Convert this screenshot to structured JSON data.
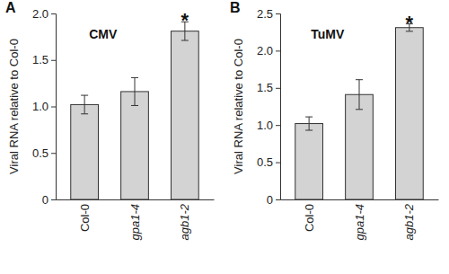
{
  "chart_data": [
    {
      "type": "bar",
      "panel_label": "A",
      "title": "CMV",
      "y_label": "Viral RNA relative to Col-0",
      "categories": [
        "Col-0",
        "gpa1-4",
        "agb1-2"
      ],
      "values": [
        1.02,
        1.16,
        1.81
      ],
      "errors": [
        0.1,
        0.15,
        0.1
      ],
      "color": "#d3d3d3",
      "ylim": [
        0,
        2
      ],
      "yticks": [
        0,
        0.5,
        {
          "value": 1,
          "label": "1.0"
        },
        1.5,
        {
          "value": 2,
          "label": "2.0"
        }
      ],
      "annotations": [
        {
          "text": "*",
          "x": "agb1-2"
        }
      ]
    },
    {
      "type": "bar",
      "panel_label": "B",
      "title": "TuMV",
      "y_label": "Viral RNA relative to Col-0",
      "categories": [
        "Col-0",
        "gpa1-4",
        "agb1-2"
      ],
      "values": [
        1.02,
        1.41,
        2.31
      ],
      "errors": [
        0.09,
        0.2,
        0.05
      ],
      "color": "#d3d3d3",
      "ylim": [
        0,
        2.5
      ],
      "yticks": [
        0,
        0.5,
        {
          "value": 1,
          "label": "1.0"
        },
        1.5,
        {
          "value": 2,
          "label": "2.0"
        },
        2.5
      ],
      "annotations": [
        {
          "text": "*",
          "x": "agb1-2"
        }
      ]
    }
  ]
}
